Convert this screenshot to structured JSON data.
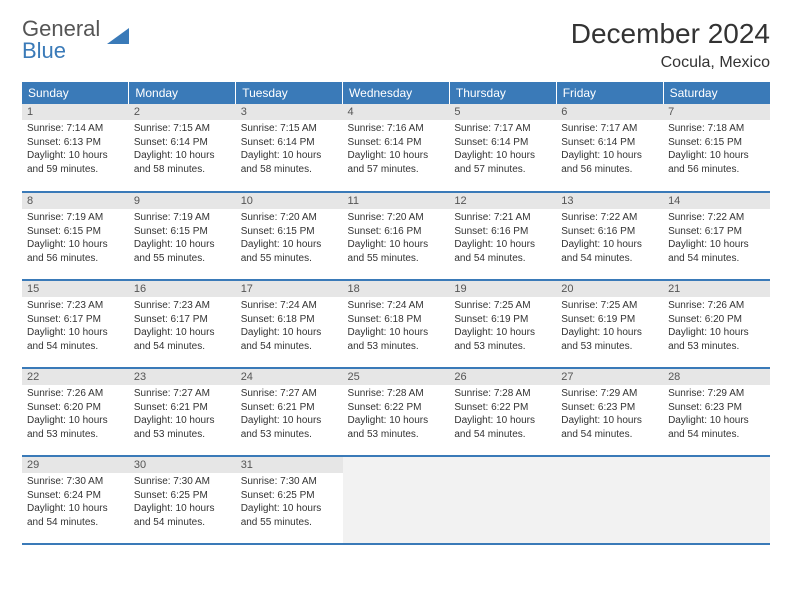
{
  "logo": {
    "line1": "General",
    "line2": "Blue"
  },
  "title": "December 2024",
  "location": "Cocula, Mexico",
  "colors": {
    "header_bg": "#3a7ab8",
    "header_fg": "#ffffff",
    "daynum_bg": "#e6e6e6",
    "row_border": "#3a7ab8",
    "logo_accent": "#3a7ab8",
    "text": "#333333"
  },
  "weekdays": [
    "Sunday",
    "Monday",
    "Tuesday",
    "Wednesday",
    "Thursday",
    "Friday",
    "Saturday"
  ],
  "days": [
    {
      "n": 1,
      "sunrise": "7:14 AM",
      "sunset": "6:13 PM",
      "daylight": "10 hours and 59 minutes."
    },
    {
      "n": 2,
      "sunrise": "7:15 AM",
      "sunset": "6:14 PM",
      "daylight": "10 hours and 58 minutes."
    },
    {
      "n": 3,
      "sunrise": "7:15 AM",
      "sunset": "6:14 PM",
      "daylight": "10 hours and 58 minutes."
    },
    {
      "n": 4,
      "sunrise": "7:16 AM",
      "sunset": "6:14 PM",
      "daylight": "10 hours and 57 minutes."
    },
    {
      "n": 5,
      "sunrise": "7:17 AM",
      "sunset": "6:14 PM",
      "daylight": "10 hours and 57 minutes."
    },
    {
      "n": 6,
      "sunrise": "7:17 AM",
      "sunset": "6:14 PM",
      "daylight": "10 hours and 56 minutes."
    },
    {
      "n": 7,
      "sunrise": "7:18 AM",
      "sunset": "6:15 PM",
      "daylight": "10 hours and 56 minutes."
    },
    {
      "n": 8,
      "sunrise": "7:19 AM",
      "sunset": "6:15 PM",
      "daylight": "10 hours and 56 minutes."
    },
    {
      "n": 9,
      "sunrise": "7:19 AM",
      "sunset": "6:15 PM",
      "daylight": "10 hours and 55 minutes."
    },
    {
      "n": 10,
      "sunrise": "7:20 AM",
      "sunset": "6:15 PM",
      "daylight": "10 hours and 55 minutes."
    },
    {
      "n": 11,
      "sunrise": "7:20 AM",
      "sunset": "6:16 PM",
      "daylight": "10 hours and 55 minutes."
    },
    {
      "n": 12,
      "sunrise": "7:21 AM",
      "sunset": "6:16 PM",
      "daylight": "10 hours and 54 minutes."
    },
    {
      "n": 13,
      "sunrise": "7:22 AM",
      "sunset": "6:16 PM",
      "daylight": "10 hours and 54 minutes."
    },
    {
      "n": 14,
      "sunrise": "7:22 AM",
      "sunset": "6:17 PM",
      "daylight": "10 hours and 54 minutes."
    },
    {
      "n": 15,
      "sunrise": "7:23 AM",
      "sunset": "6:17 PM",
      "daylight": "10 hours and 54 minutes."
    },
    {
      "n": 16,
      "sunrise": "7:23 AM",
      "sunset": "6:17 PM",
      "daylight": "10 hours and 54 minutes."
    },
    {
      "n": 17,
      "sunrise": "7:24 AM",
      "sunset": "6:18 PM",
      "daylight": "10 hours and 54 minutes."
    },
    {
      "n": 18,
      "sunrise": "7:24 AM",
      "sunset": "6:18 PM",
      "daylight": "10 hours and 53 minutes."
    },
    {
      "n": 19,
      "sunrise": "7:25 AM",
      "sunset": "6:19 PM",
      "daylight": "10 hours and 53 minutes."
    },
    {
      "n": 20,
      "sunrise": "7:25 AM",
      "sunset": "6:19 PM",
      "daylight": "10 hours and 53 minutes."
    },
    {
      "n": 21,
      "sunrise": "7:26 AM",
      "sunset": "6:20 PM",
      "daylight": "10 hours and 53 minutes."
    },
    {
      "n": 22,
      "sunrise": "7:26 AM",
      "sunset": "6:20 PM",
      "daylight": "10 hours and 53 minutes."
    },
    {
      "n": 23,
      "sunrise": "7:27 AM",
      "sunset": "6:21 PM",
      "daylight": "10 hours and 53 minutes."
    },
    {
      "n": 24,
      "sunrise": "7:27 AM",
      "sunset": "6:21 PM",
      "daylight": "10 hours and 53 minutes."
    },
    {
      "n": 25,
      "sunrise": "7:28 AM",
      "sunset": "6:22 PM",
      "daylight": "10 hours and 53 minutes."
    },
    {
      "n": 26,
      "sunrise": "7:28 AM",
      "sunset": "6:22 PM",
      "daylight": "10 hours and 54 minutes."
    },
    {
      "n": 27,
      "sunrise": "7:29 AM",
      "sunset": "6:23 PM",
      "daylight": "10 hours and 54 minutes."
    },
    {
      "n": 28,
      "sunrise": "7:29 AM",
      "sunset": "6:23 PM",
      "daylight": "10 hours and 54 minutes."
    },
    {
      "n": 29,
      "sunrise": "7:30 AM",
      "sunset": "6:24 PM",
      "daylight": "10 hours and 54 minutes."
    },
    {
      "n": 30,
      "sunrise": "7:30 AM",
      "sunset": "6:25 PM",
      "daylight": "10 hours and 54 minutes."
    },
    {
      "n": 31,
      "sunrise": "7:30 AM",
      "sunset": "6:25 PM",
      "daylight": "10 hours and 55 minutes."
    }
  ],
  "labels": {
    "sunrise": "Sunrise:",
    "sunset": "Sunset:",
    "daylight": "Daylight:"
  }
}
